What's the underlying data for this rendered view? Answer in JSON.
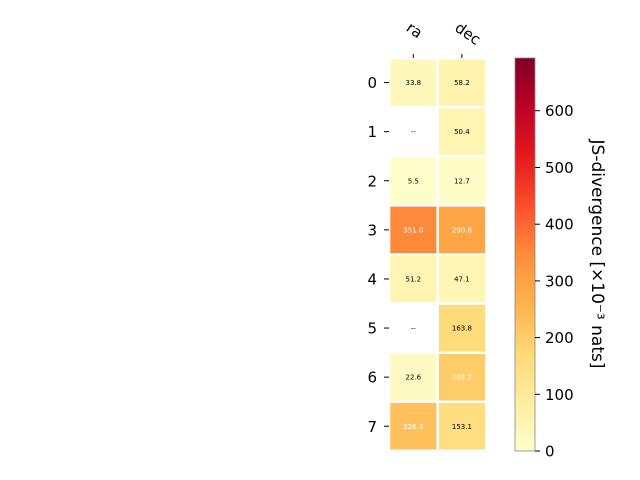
{
  "chart_data": {
    "type": "heatmap",
    "columns": [
      "ra",
      "dec"
    ],
    "rows": [
      "0",
      "1",
      "2",
      "3",
      "4",
      "5",
      "6",
      "7"
    ],
    "values": [
      [
        33.8,
        58.2
      ],
      [
        null,
        50.4
      ],
      [
        5.5,
        12.7
      ],
      [
        351.0,
        290.8
      ],
      [
        51.2,
        47.1
      ],
      [
        null,
        163.8
      ],
      [
        22.6,
        202.2
      ],
      [
        226.3,
        153.1
      ]
    ],
    "cell_labels": [
      [
        "33.8",
        "58.2"
      ],
      [
        "--",
        "50.4"
      ],
      [
        "5.5",
        "12.7"
      ],
      [
        "351.0",
        "290.8"
      ],
      [
        "51.2",
        "47.1"
      ],
      [
        "--",
        "163.8"
      ],
      [
        "22.6",
        "202.2"
      ],
      [
        "226.3",
        "153.1"
      ]
    ],
    "colorbar": {
      "label": "JS-divergence [×10⁻³ nats]",
      "range": [
        0,
        693
      ],
      "ticks": [
        0,
        100,
        200,
        300,
        400,
        500,
        600
      ],
      "colormap": "YlOrRd"
    }
  }
}
